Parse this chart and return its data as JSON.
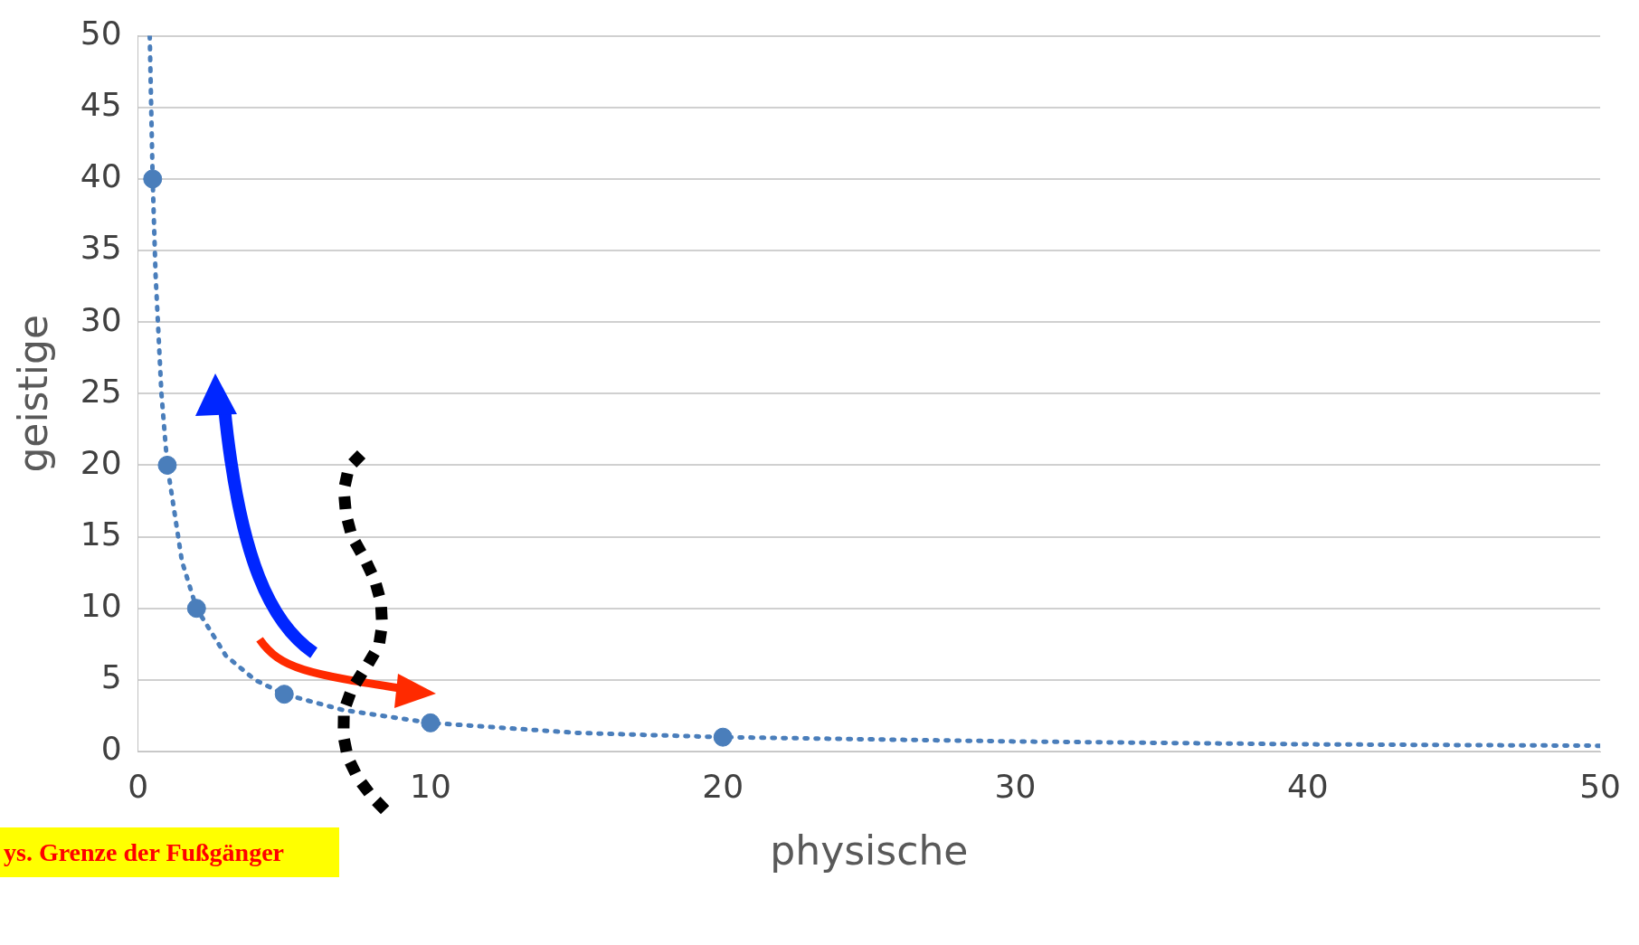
{
  "chart_data": {
    "type": "scatter",
    "xlabel": "physische",
    "ylabel": "geistige",
    "xlim": [
      0,
      50
    ],
    "xticks": [
      0,
      10,
      20,
      30,
      40,
      50
    ],
    "ylim": [
      0,
      50
    ],
    "yticks": [
      0,
      5,
      10,
      15,
      20,
      25,
      30,
      35,
      40,
      45,
      50
    ],
    "grid": "y",
    "legend": false,
    "marker": "circle",
    "series": [
      {
        "type": "line",
        "color": "#4a7ebb",
        "line_style": "dotted",
        "marker": "none",
        "x": [
          0.4,
          0.5,
          0.6,
          0.8,
          1,
          1.5,
          2,
          3,
          4,
          5,
          7,
          10,
          15,
          20,
          30,
          40,
          50
        ],
        "values": [
          50,
          40,
          33.3,
          25,
          20,
          13.3,
          10,
          6.7,
          5,
          4,
          2.9,
          2,
          1.3,
          1,
          0.7,
          0.5,
          0.4
        ]
      },
      {
        "type": "scatter",
        "color": "#4a7ebb",
        "x": [
          0.5,
          1,
          2,
          5,
          10,
          20
        ],
        "values": [
          40,
          20,
          10,
          4,
          2,
          1
        ]
      }
    ],
    "annotations": [
      "ys. Grenze der Fußgänger"
    ]
  }
}
